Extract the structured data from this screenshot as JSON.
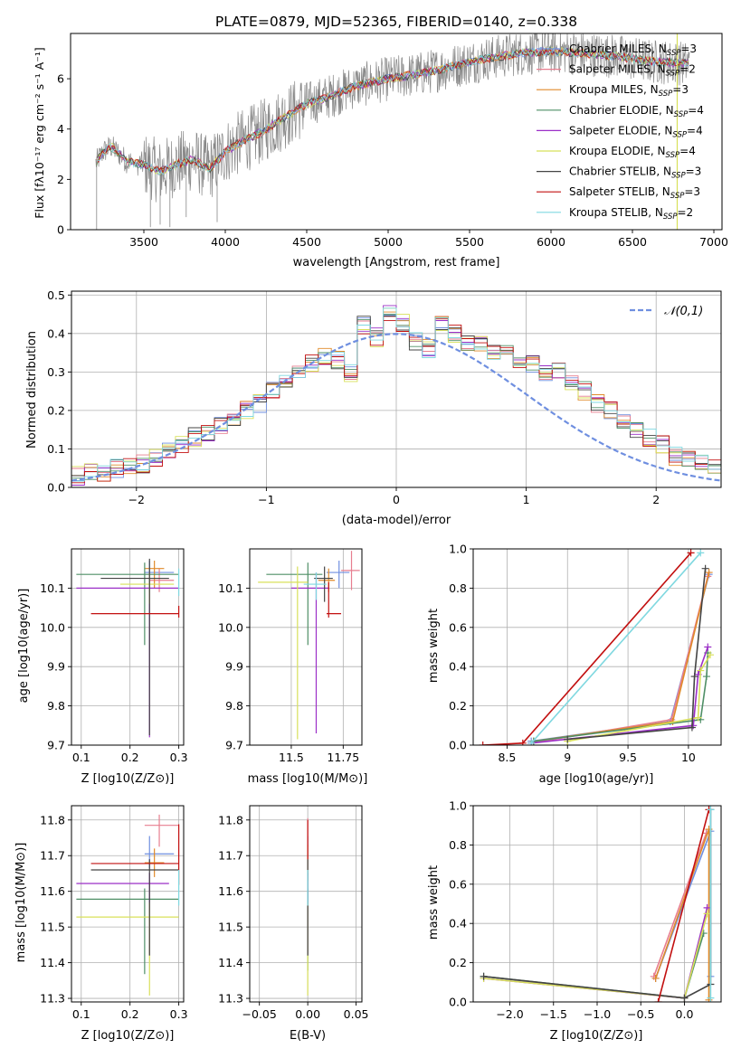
{
  "colors": [
    "#6f8fe0",
    "#e77e8f",
    "#e08a2a",
    "#4f8f66",
    "#9b2fc7",
    "#d8e05a",
    "#444444",
    "#c21010",
    "#7fd8e0"
  ],
  "legend_labels": [
    "Chabrier MILES, N",
    "Salpeter MILES, N",
    "Kroupa MILES, N",
    "Chabrier ELODIE, N",
    "Salpeter ELODIE, N",
    "Kroupa ELODIE, N",
    "Chabrier STELIB, N",
    "Salpeter STELIB, N",
    "Kroupa STELIB, N"
  ],
  "legend_nssp": [
    "=3",
    "=2",
    "=3",
    "=4",
    "=4",
    "=4",
    "=3",
    "=3",
    "=2"
  ],
  "legend_sub": "SSP",
  "chart_data": [
    {
      "id": "spectrum",
      "type": "line",
      "title": "PLATE=0879, MJD=52365, FIBERID=0140, z=0.338",
      "xlabel": "wavelength [Angstrom, rest frame]",
      "ylabel": "Flux [fλ10⁻¹⁷ erg cm⁻² s⁻¹ A⁻¹]",
      "xlim": [
        3050,
        7050
      ],
      "ylim": [
        0,
        7.8
      ],
      "xticks": [
        3500,
        4000,
        4500,
        5000,
        5500,
        6000,
        6500,
        7000
      ],
      "yticks": [
        0,
        2,
        4,
        6
      ],
      "continuum_knots": {
        "x": [
          3200,
          3250,
          3300,
          3400,
          3500,
          3600,
          3700,
          3800,
          3900,
          4000,
          4100,
          4200,
          4300,
          4400,
          4500,
          4600,
          4800,
          5000,
          5200,
          5400,
          5600,
          5800,
          6000,
          6200,
          6400,
          6600,
          6850
        ],
        "y": [
          2.6,
          3.1,
          3.3,
          2.7,
          2.6,
          2.3,
          2.6,
          2.8,
          2.4,
          3.1,
          3.5,
          3.8,
          4.2,
          4.6,
          5.0,
          5.2,
          5.7,
          6.0,
          6.2,
          6.5,
          6.8,
          7.0,
          7.1,
          7.0,
          6.9,
          6.7,
          6.6
        ]
      }
    },
    {
      "id": "residuals",
      "type": "line",
      "xlabel": "(data-model)/error",
      "ylabel": "Normed distribution",
      "xlim": [
        -2.5,
        2.5
      ],
      "ylim": [
        0,
        0.51
      ],
      "xticks": [
        -2,
        -1,
        0,
        1,
        2
      ],
      "yticks": [
        0.0,
        0.1,
        0.2,
        0.3,
        0.4,
        0.5
      ],
      "gaussian_label": "𝒩(0,1)",
      "hist_bin_width": 0.1,
      "hist_base": [
        0.02,
        0.02,
        0.03,
        0.04,
        0.04,
        0.05,
        0.06,
        0.06,
        0.08,
        0.09,
        0.11,
        0.13,
        0.14,
        0.16,
        0.18,
        0.2,
        0.22,
        0.25,
        0.28,
        0.3,
        0.32,
        0.34,
        0.33,
        0.3,
        0.42,
        0.39,
        0.45,
        0.43,
        0.38,
        0.36,
        0.43,
        0.4,
        0.38,
        0.37,
        0.35,
        0.35,
        0.33,
        0.32,
        0.3,
        0.3,
        0.27,
        0.25,
        0.22,
        0.2,
        0.17,
        0.15,
        0.13,
        0.11,
        0.08,
        0.07,
        0.06,
        0.05,
        0.04,
        0.03,
        0.03
      ]
    },
    {
      "id": "age-vs-Z",
      "type": "scatter",
      "xlabel": "Z [log10(Z/Z⊙)]",
      "ylabel": "age  [log10(age/yr)]",
      "xlim": [
        0.08,
        0.31
      ],
      "ylim": [
        9.7,
        10.2
      ],
      "xticks": [
        0.1,
        0.2,
        0.3
      ],
      "yticks": [
        9.7,
        9.8,
        9.9,
        10.0,
        10.1
      ],
      "points": [
        {
          "x": 0.24,
          "y": 10.14,
          "xerr": [
            0.01,
            0.05
          ],
          "yerr": [
            0.05,
            0.03
          ]
        },
        {
          "x": 0.26,
          "y": 10.12,
          "xerr": [
            0.02,
            0.03
          ],
          "yerr": [
            0.03,
            0.03
          ]
        },
        {
          "x": 0.25,
          "y": 10.15,
          "xerr": [
            0.02,
            0.02
          ],
          "yerr": [
            0.05,
            0.02
          ]
        },
        {
          "x": 0.23,
          "y": 10.135,
          "xerr": [
            0.14,
            0.07
          ],
          "yerr": [
            0.18,
            0.03
          ]
        },
        {
          "x": 0.24,
          "y": 10.1,
          "xerr": [
            0.15,
            0.06
          ],
          "yerr": [
            0.38,
            0.04
          ]
        },
        {
          "x": 0.24,
          "y": 10.11,
          "xerr": [
            0.06,
            0.05
          ],
          "yerr": [
            0.05,
            0.03
          ]
        },
        {
          "x": 0.24,
          "y": 10.125,
          "xerr": [
            0.1,
            0.04
          ],
          "yerr": [
            0.4,
            0.05
          ]
        },
        {
          "x": 0.3,
          "y": 10.035,
          "xerr": [
            0.18,
            0.0
          ],
          "yerr": [
            0.01,
            0.02
          ]
        },
        {
          "x": 0.3,
          "y": 10.11,
          "xerr": [
            0.0,
            0.0
          ],
          "yerr": [
            0.03,
            0.04
          ]
        }
      ]
    },
    {
      "id": "age-vs-mass",
      "type": "scatter",
      "xlabel": "mass [log10(M/M⊙)]",
      "ylabel": "",
      "xlim": [
        11.3,
        11.84
      ],
      "ylim": [
        9.7,
        10.2
      ],
      "xticks": [
        11.5,
        11.75
      ],
      "yticks": [
        9.7,
        9.8,
        9.9,
        10.0,
        10.1
      ],
      "points": [
        {
          "x": 11.73,
          "y": 10.14,
          "xerr": [
            0.06,
            0.05
          ],
          "yerr": [
            0.04,
            0.03
          ]
        },
        {
          "x": 11.79,
          "y": 10.145,
          "xerr": [
            0.05,
            0.04
          ],
          "yerr": [
            0.05,
            0.05
          ]
        },
        {
          "x": 11.68,
          "y": 10.12,
          "xerr": [
            0.05,
            0.03
          ],
          "yerr": [
            0.03,
            0.03
          ]
        },
        {
          "x": 11.58,
          "y": 10.135,
          "xerr": [
            0.2,
            0.07
          ],
          "yerr": [
            0.18,
            0.03
          ]
        },
        {
          "x": 11.62,
          "y": 10.1,
          "xerr": [
            0.12,
            0.06
          ],
          "yerr": [
            0.37,
            0.04
          ]
        },
        {
          "x": 11.53,
          "y": 10.115,
          "xerr": [
            0.19,
            0.05
          ],
          "yerr": [
            0.4,
            0.04
          ]
        },
        {
          "x": 11.66,
          "y": 10.125,
          "xerr": [
            0.05,
            0.04
          ],
          "yerr": [
            0.06,
            0.03
          ]
        },
        {
          "x": 11.68,
          "y": 10.035,
          "xerr": [
            0.01,
            0.06
          ],
          "yerr": [
            0.01,
            0.08
          ]
        },
        {
          "x": 11.62,
          "y": 10.11,
          "xerr": [
            0.06,
            0.05
          ],
          "yerr": [
            0.04,
            0.03
          ]
        }
      ]
    },
    {
      "id": "weight-vs-age",
      "type": "line",
      "xlabel": "age  [log10(age/yr)]",
      "ylabel": "mass weight",
      "xlim": [
        8.22,
        10.27
      ],
      "ylim": [
        0,
        1.0
      ],
      "xticks": [
        8.5,
        9.0,
        9.5,
        10.0
      ],
      "yticks": [
        0.0,
        0.2,
        0.4,
        0.6,
        0.8,
        1.0
      ],
      "series": [
        {
          "x": [
            8.7,
            9.85,
            10.17
          ],
          "y": [
            0.02,
            0.12,
            0.87
          ]
        },
        {
          "x": [
            8.7,
            9.86,
            10.16
          ],
          "y": [
            0.01,
            0.13,
            0.86
          ]
        },
        {
          "x": [
            8.72,
            9.87,
            10.17
          ],
          "y": [
            0.02,
            0.12,
            0.88
          ]
        },
        {
          "x": [
            8.72,
            10.1,
            10.15,
            10.16
          ],
          "y": [
            0.02,
            0.13,
            0.35,
            0.47
          ]
        },
        {
          "x": [
            8.7,
            10.04,
            10.08,
            10.16
          ],
          "y": [
            0.01,
            0.1,
            0.36,
            0.5
          ]
        },
        {
          "x": [
            9.0,
            10.08,
            10.1,
            10.18
          ],
          "y": [
            0.02,
            0.14,
            0.38,
            0.46
          ]
        },
        {
          "x": [
            9.0,
            10.03,
            10.05,
            10.14
          ],
          "y": [
            0.03,
            0.09,
            0.35,
            0.9
          ]
        },
        {
          "x": [
            8.3,
            8.63,
            10.02
          ],
          "y": [
            0.0,
            0.01,
            0.98
          ]
        },
        {
          "x": [
            8.7,
            10.1
          ],
          "y": [
            0.01,
            0.98
          ]
        }
      ]
    },
    {
      "id": "mass-vs-Z",
      "type": "scatter",
      "xlabel": "Z [log10(Z/Z⊙)]",
      "ylabel": "mass [log10(M/M⊙)]",
      "xlim": [
        0.08,
        0.31
      ],
      "ylim": [
        11.29,
        11.84
      ],
      "xticks": [
        0.1,
        0.2,
        0.3
      ],
      "yticks": [
        11.3,
        11.4,
        11.5,
        11.6,
        11.7,
        11.8
      ],
      "points": [
        {
          "x": 0.24,
          "y": 11.705,
          "xerr": [
            0.01,
            0.05
          ],
          "yerr": [
            0.04,
            0.05
          ]
        },
        {
          "x": 0.26,
          "y": 11.785,
          "xerr": [
            0.03,
            0.04
          ],
          "yerr": [
            0.06,
            0.03
          ]
        },
        {
          "x": 0.25,
          "y": 11.68,
          "xerr": [
            0.02,
            0.02
          ],
          "yerr": [
            0.04,
            0.04
          ]
        },
        {
          "x": 0.23,
          "y": 11.578,
          "xerr": [
            0.14,
            0.07
          ],
          "yerr": [
            0.21,
            0.03
          ]
        },
        {
          "x": 0.24,
          "y": 11.622,
          "xerr": [
            0.15,
            0.04
          ],
          "yerr": [
            0.2,
            0.03
          ]
        },
        {
          "x": 0.24,
          "y": 11.528,
          "xerr": [
            0.15,
            0.06
          ],
          "yerr": [
            0.22,
            0.04
          ]
        },
        {
          "x": 0.24,
          "y": 11.66,
          "xerr": [
            0.12,
            0.06
          ],
          "yerr": [
            0.24,
            0.03
          ]
        },
        {
          "x": 0.3,
          "y": 11.678,
          "xerr": [
            0.18,
            0.0
          ],
          "yerr": [
            0.06,
            0.11
          ]
        },
        {
          "x": 0.3,
          "y": 11.6,
          "xerr": [
            0.0,
            0.0
          ],
          "yerr": [
            0.04,
            0.06
          ]
        }
      ]
    },
    {
      "id": "mass-vs-ebv",
      "type": "scatter",
      "xlabel": "E(B-V)",
      "ylabel": "",
      "xlim": [
        -0.06,
        0.056
      ],
      "ylim": [
        11.29,
        11.84
      ],
      "xticks": [
        -0.05,
        0.0,
        0.05
      ],
      "xticklabels": [
        "−0.05",
        "0.00",
        "0.05"
      ],
      "yticks": [
        11.3,
        11.4,
        11.5,
        11.6,
        11.7,
        11.8
      ],
      "points": [
        {
          "x": 0.0,
          "y": 11.705,
          "yerr": [
            0.06,
            0.05
          ]
        },
        {
          "x": 0.0,
          "y": 11.785,
          "yerr": [
            0.06,
            0.02
          ]
        },
        {
          "x": 0.0,
          "y": 11.68,
          "yerr": [
            0.05,
            0.05
          ]
        },
        {
          "x": 0.0,
          "y": 11.578,
          "yerr": [
            0.2,
            0.03
          ]
        },
        {
          "x": 0.0,
          "y": 11.622,
          "yerr": [
            0.2,
            0.03
          ]
        },
        {
          "x": 0.0,
          "y": 11.528,
          "yerr": [
            0.22,
            0.04
          ]
        },
        {
          "x": 0.0,
          "y": 11.66,
          "yerr": [
            0.24,
            0.03
          ]
        },
        {
          "x": 0.0,
          "y": 11.72,
          "yerr": [
            0.03,
            0.08
          ]
        },
        {
          "x": 0.0,
          "y": 11.6,
          "yerr": [
            0.04,
            0.06
          ]
        }
      ]
    },
    {
      "id": "weight-vs-Z",
      "type": "line",
      "xlabel": "Z [log10(Z/Z⊙)]",
      "ylabel": "mass weight",
      "xlim": [
        -2.42,
        0.42
      ],
      "ylim": [
        0,
        1.0
      ],
      "xticks": [
        -2.0,
        -1.5,
        -1.0,
        -0.5,
        0.0
      ],
      "xticklabels": [
        "−2.0",
        "−1.5",
        "−1.0",
        "−0.5",
        "0.0"
      ],
      "yticks": [
        0.0,
        0.2,
        0.4,
        0.6,
        0.8,
        1.0
      ],
      "series": [
        {
          "x": [
            -0.33,
            0.3,
            0.3
          ],
          "y": [
            0.12,
            0.87,
            0.13
          ]
        },
        {
          "x": [
            -0.35,
            0.25
          ],
          "y": [
            0.13,
            0.86
          ]
        },
        {
          "x": [
            -0.33,
            0.28,
            0.28
          ],
          "y": [
            0.12,
            0.88,
            0.01
          ]
        },
        {
          "x": [
            -2.3,
            0.0,
            0.22
          ],
          "y": [
            0.13,
            0.02,
            0.35
          ]
        },
        {
          "x": [
            -2.3,
            0.0,
            0.26
          ],
          "y": [
            0.12,
            0.02,
            0.48
          ]
        },
        {
          "x": [
            -2.3,
            0.0,
            0.26
          ],
          "y": [
            0.12,
            0.02,
            0.45
          ]
        },
        {
          "x": [
            -2.3,
            0.0,
            0.3,
            0.3
          ],
          "y": [
            0.13,
            0.02,
            0.09,
            0.98
          ]
        },
        {
          "x": [
            -0.3,
            0.28
          ],
          "y": [
            0.0,
            0.98
          ]
        },
        {
          "x": [
            0.3,
            0.3
          ],
          "y": [
            0.02,
            0.98
          ]
        }
      ]
    }
  ]
}
